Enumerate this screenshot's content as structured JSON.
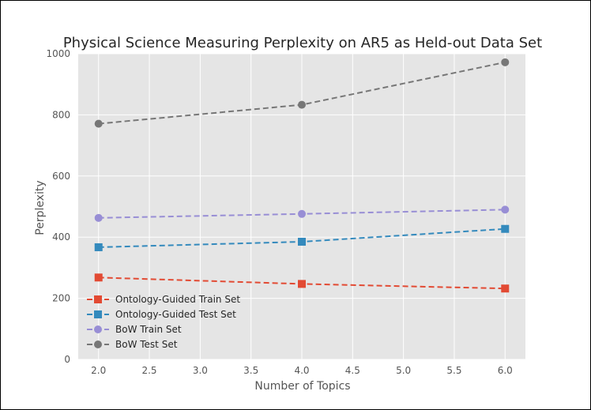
{
  "chart_data": {
    "type": "line",
    "title": "Physical Science Measuring Perplexity on AR5 as Held-out Data Set",
    "xlabel": "Number of Topics",
    "ylabel": "Perplexity",
    "xlim": [
      1.8,
      6.2
    ],
    "ylim": [
      0,
      1000
    ],
    "xticks": [
      "2.0",
      "2.5",
      "3.0",
      "3.5",
      "4.0",
      "4.5",
      "5.0",
      "5.5",
      "6.0"
    ],
    "yticks": [
      "0",
      "200",
      "400",
      "600",
      "800",
      "1000"
    ],
    "grid": true,
    "legend_position": "lower-left",
    "x": [
      2,
      4,
      6
    ],
    "series": [
      {
        "name": "Ontology-Guided Train Set",
        "values": [
          268,
          247,
          232
        ],
        "color": "#E24A33",
        "marker": "square"
      },
      {
        "name": "Ontology-Guided Test Set",
        "values": [
          367,
          385,
          427
        ],
        "color": "#348ABD",
        "marker": "square"
      },
      {
        "name": "BoW Train Set",
        "values": [
          463,
          476,
          490
        ],
        "color": "#988ED5",
        "marker": "circle"
      },
      {
        "name": "BoW Test Set",
        "values": [
          771,
          833,
          972
        ],
        "color": "#777777",
        "marker": "circle"
      }
    ]
  }
}
